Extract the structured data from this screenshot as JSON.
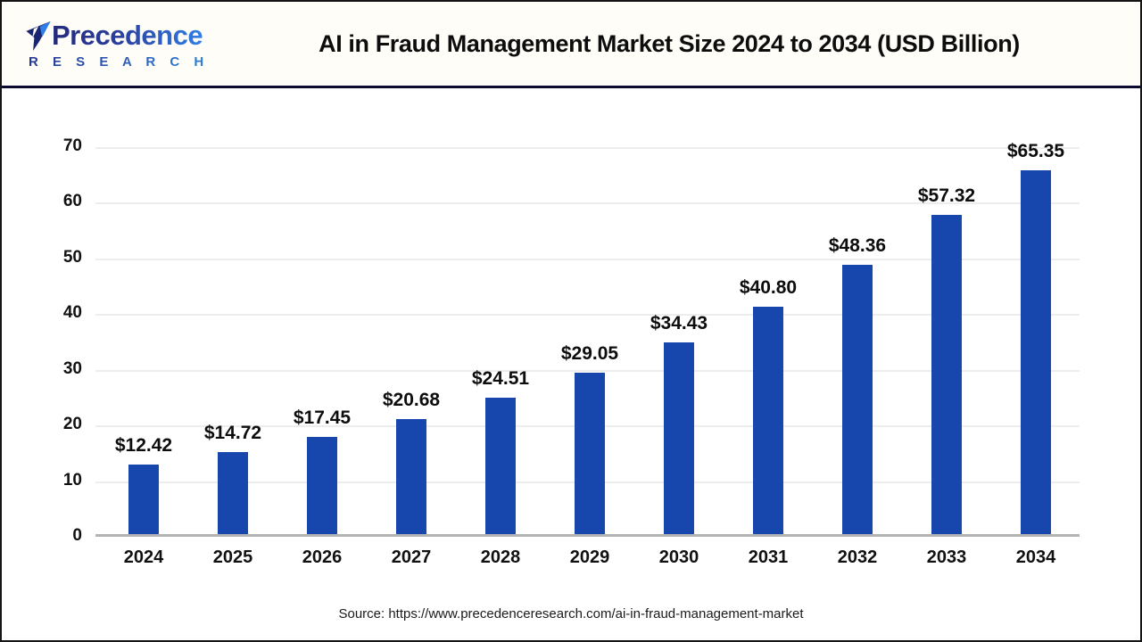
{
  "header": {
    "logo": {
      "line1": "Precedence",
      "line2": "R E S E A R C H"
    },
    "title": "AI in Fraud Management Market Size 2024 to 2034 (USD Billion)"
  },
  "chart_data": {
    "type": "bar",
    "title": "AI in Fraud Management Market Size 2024 to 2034 (USD Billion)",
    "categories": [
      "2024",
      "2025",
      "2026",
      "2027",
      "2028",
      "2029",
      "2030",
      "2031",
      "2032",
      "2033",
      "2034"
    ],
    "values": [
      12.42,
      14.72,
      17.45,
      20.68,
      24.51,
      29.05,
      34.43,
      40.8,
      48.36,
      57.32,
      65.35
    ],
    "value_labels": [
      "$12.42",
      "$14.72",
      "$17.45",
      "$20.68",
      "$24.51",
      "$29.05",
      "$34.43",
      "$40.80",
      "$48.36",
      "$57.32",
      "$65.35"
    ],
    "xlabel": "",
    "ylabel": "",
    "ylim": [
      0,
      70
    ],
    "yticks": [
      0,
      10,
      20,
      30,
      40,
      50,
      60,
      70
    ],
    "grid": true,
    "legend": "none",
    "bar_color": "#1746ad",
    "axis_line_color": "#b3b3b3",
    "gridline_color": "#ededed"
  },
  "footer": {
    "source": "Source: https://www.precedenceresearch.com/ai-in-fraud-management-market"
  }
}
